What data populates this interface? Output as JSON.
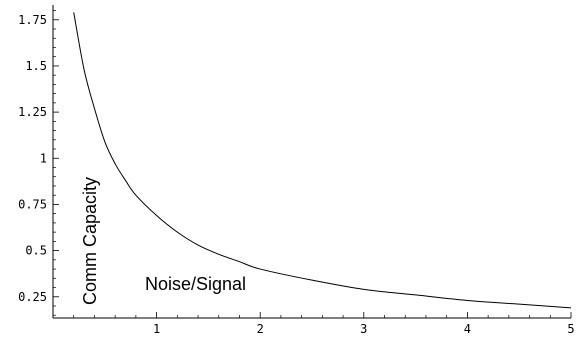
{
  "chart_data": {
    "type": "line",
    "xlabel": "Noise/Signal",
    "ylabel": "Comm Capacity",
    "xlim": [
      0,
      5
    ],
    "ylim": [
      0.135,
      1.83
    ],
    "x_origin": 0,
    "y_origin": 0.135,
    "x_ticks": [
      {
        "value": 1,
        "label": "1"
      },
      {
        "value": 2,
        "label": "2"
      },
      {
        "value": 3,
        "label": "3"
      },
      {
        "value": 4,
        "label": "4"
      },
      {
        "value": 5,
        "label": "5"
      }
    ],
    "y_ticks": [
      {
        "value": 0.25,
        "label": "0.25"
      },
      {
        "value": 0.5,
        "label": "0.5"
      },
      {
        "value": 0.75,
        "label": "0.75"
      },
      {
        "value": 1,
        "label": "1"
      },
      {
        "value": 1.25,
        "label": "1.25"
      },
      {
        "value": 1.5,
        "label": "1.5"
      },
      {
        "value": 1.75,
        "label": "1.75"
      }
    ],
    "x_minor_step": 0.2,
    "y_minor_step": 0.05,
    "series": [
      {
        "color": "#000000",
        "x": [
          0.2,
          0.3,
          0.4,
          0.5,
          0.6,
          0.7,
          0.8,
          1.0,
          1.2,
          1.4,
          1.6,
          1.8,
          2.0,
          2.5,
          3.0,
          3.5,
          4.0,
          4.5,
          5.0
        ],
        "y": [
          1.79,
          1.48,
          1.27,
          1.09,
          0.97,
          0.88,
          0.8,
          0.69,
          0.6,
          0.53,
          0.48,
          0.44,
          0.4,
          0.34,
          0.29,
          0.26,
          0.23,
          0.21,
          0.19
        ]
      }
    ]
  }
}
